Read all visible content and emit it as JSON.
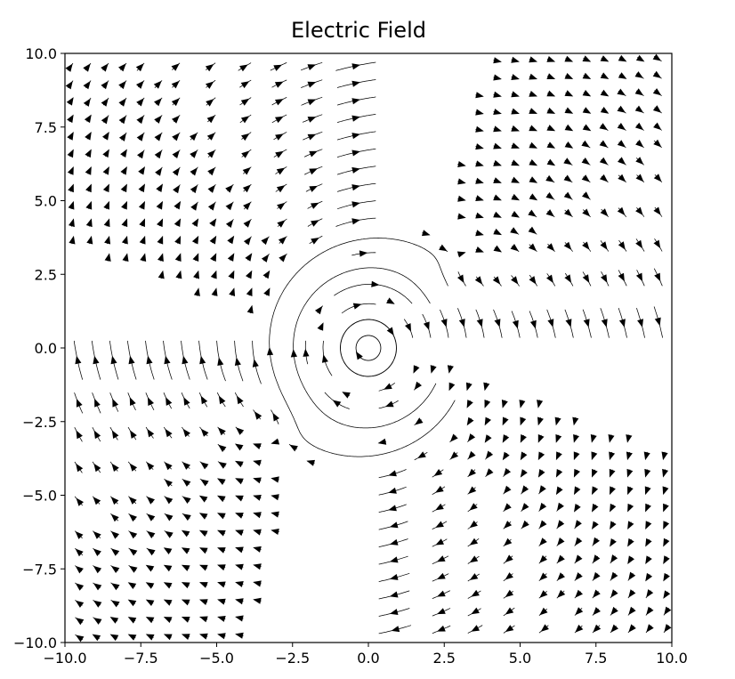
{
  "chart_data": {
    "type": "streamplot",
    "title": "Electric Field",
    "xlabel": "",
    "ylabel": "",
    "xlim": [
      -10,
      10
    ],
    "ylim": [
      -10,
      10
    ],
    "grid": false,
    "legend": false,
    "line_color": "#000000",
    "charges": [
      {
        "x": 3,
        "y": 3,
        "sign": "source"
      },
      {
        "x": -3,
        "y": -3,
        "sign": "source"
      }
    ],
    "rotation_center": {
      "x": 0,
      "y": 0
    },
    "x_ticks": [
      {
        "value": -10,
        "label": "−10.0"
      },
      {
        "value": -7.5,
        "label": "−7.5"
      },
      {
        "value": -5,
        "label": "−5.0"
      },
      {
        "value": -2.5,
        "label": "−2.5"
      },
      {
        "value": 0,
        "label": "0.0"
      },
      {
        "value": 2.5,
        "label": "2.5"
      },
      {
        "value": 5,
        "label": "5.0"
      },
      {
        "value": 7.5,
        "label": "7.5"
      },
      {
        "value": 10,
        "label": "10.0"
      }
    ],
    "y_ticks": [
      {
        "value": 10,
        "label": "10.0"
      },
      {
        "value": 7.5,
        "label": "7.5"
      },
      {
        "value": 5,
        "label": "5.0"
      },
      {
        "value": 2.5,
        "label": "2.5"
      },
      {
        "value": 0,
        "label": "0.0"
      },
      {
        "value": -2.5,
        "label": "−2.5"
      },
      {
        "value": -5,
        "label": "−5.0"
      },
      {
        "value": -7.5,
        "label": "−7.5"
      },
      {
        "value": -10,
        "label": "−10.0"
      }
    ]
  }
}
